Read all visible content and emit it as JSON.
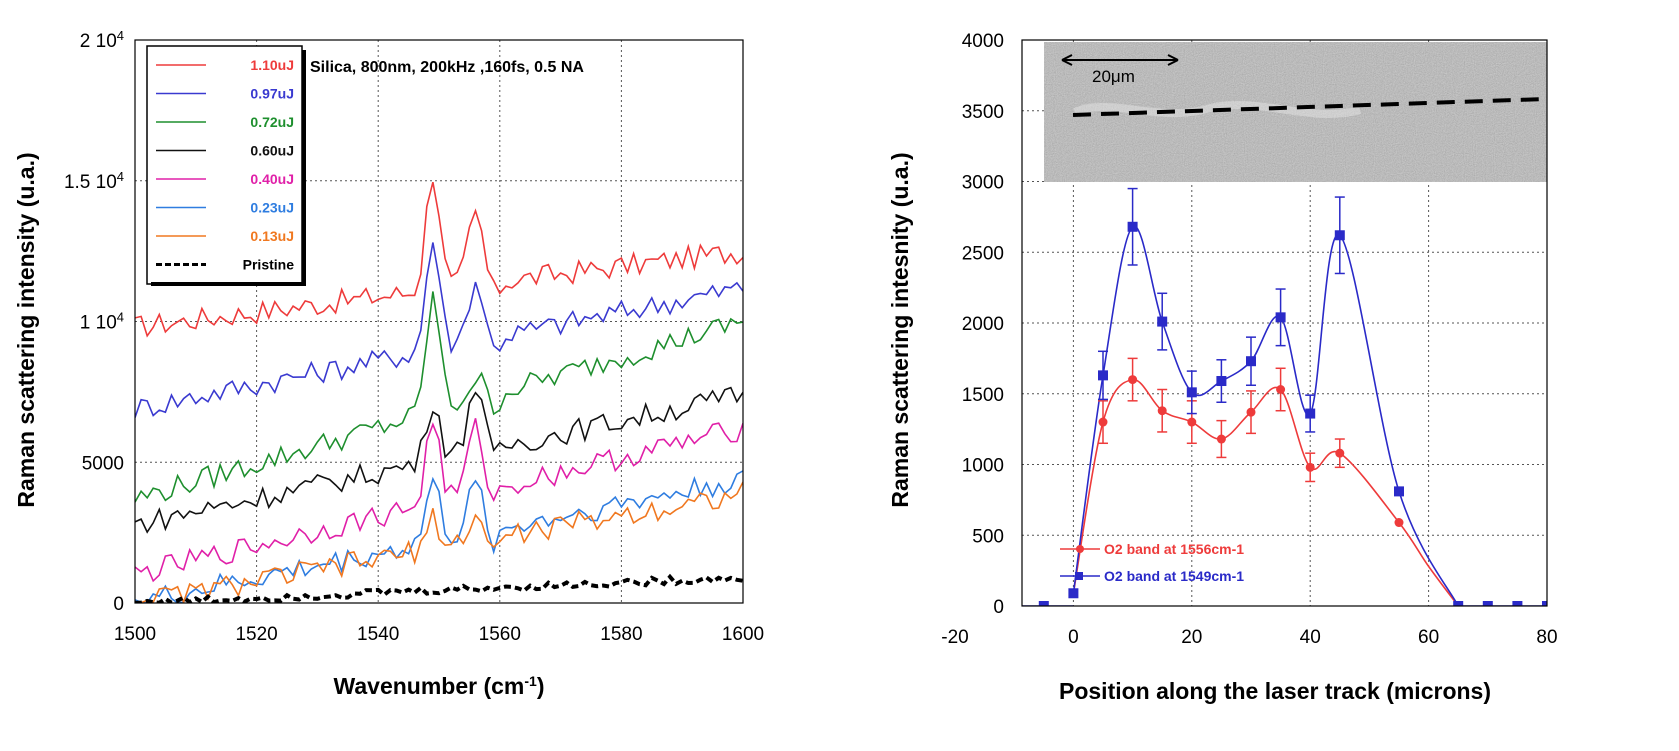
{
  "chart_data": [
    {
      "type": "line",
      "annotation": "Silica, 800nm, 200kHz ,160fs, 0.5 NA",
      "xlabel": "Wavenumber (cm",
      "xlabel_sup": "-1",
      "xlabel_tail": ")",
      "ylabel": "Raman scattering intensity (u.a.)",
      "xlim": [
        1500,
        1600
      ],
      "ylim": [
        0,
        20000
      ],
      "x_ticks": [
        "1500",
        "1520",
        "1540",
        "1560",
        "1580",
        "1600"
      ],
      "y_ticks": [
        "0",
        "5000",
        "1 10",
        "1.5 10",
        "2 10"
      ],
      "y_tick_sup": "4",
      "grid": true,
      "legend": "top-left",
      "colors": {
        "1.10uJ": "#ee3b3b",
        "0.97uJ": "#3a3ad0",
        "0.72uJ": "#1e8f2e",
        "0.60uJ": "#111111",
        "0.40uJ": "#e020a8",
        "0.23uJ": "#2f7de0",
        "0.13uJ": "#f07820",
        "Pristine": "#000000"
      },
      "series": [
        {
          "name": "1.10uJ",
          "baseline_start": 9800,
          "baseline_end": 12500,
          "peaks": [
            {
              "x": 1549,
              "y": 15300
            },
            {
              "x": 1556,
              "y": 13900
            }
          ]
        },
        {
          "name": "0.97uJ",
          "baseline_start": 6900,
          "baseline_end": 11200,
          "peaks": [
            {
              "x": 1549,
              "y": 12900
            },
            {
              "x": 1556,
              "y": 11500
            }
          ]
        },
        {
          "name": "0.72uJ",
          "baseline_start": 3700,
          "baseline_end": 10000,
          "peaks": [
            {
              "x": 1549,
              "y": 10900
            },
            {
              "x": 1556,
              "y": 8000
            }
          ]
        },
        {
          "name": "0.60uJ",
          "baseline_start": 2800,
          "baseline_end": 7400,
          "peaks": [
            {
              "x": 1549,
              "y": 7200
            },
            {
              "x": 1556,
              "y": 7900
            }
          ]
        },
        {
          "name": "0.40uJ",
          "baseline_start": 1000,
          "baseline_end": 6200,
          "peaks": [
            {
              "x": 1549,
              "y": 6500
            },
            {
              "x": 1556,
              "y": 6300
            }
          ]
        },
        {
          "name": "0.23uJ",
          "baseline_start": 0,
          "baseline_end": 4400,
          "peaks": [
            {
              "x": 1549,
              "y": 4300
            },
            {
              "x": 1556,
              "y": 4200
            }
          ]
        },
        {
          "name": "0.13uJ",
          "baseline_start": 0,
          "baseline_end": 3900,
          "peaks": [
            {
              "x": 1549,
              "y": 3000
            },
            {
              "x": 1556,
              "y": 3100
            }
          ]
        },
        {
          "name": "Pristine",
          "baseline_start": 0,
          "baseline_end": 900,
          "peaks": [],
          "style": "dashed"
        }
      ]
    },
    {
      "type": "line",
      "xlabel": "Position along the laser track (microns)",
      "ylabel": "Raman scattering intesnity (u.a.)",
      "xlim": [
        -20,
        80
      ],
      "ylim": [
        0,
        4000
      ],
      "x_ticks": [
        -20,
        0,
        20,
        40,
        60,
        80
      ],
      "y_ticks": [
        0,
        500,
        1000,
        1500,
        2000,
        2500,
        3000,
        3500,
        4000
      ],
      "grid": true,
      "legend": "bottom-left",
      "inset_image_label": "20μm",
      "colors": {
        "O2 band at 1556cm-1": "#ee3b3b",
        "O2 band at 1549cm-1": "#2a2ac8"
      },
      "series": [
        {
          "name": "O2 band at 1556cm-1",
          "marker": "circle",
          "x": [
            5,
            10,
            15,
            20,
            25,
            30,
            35,
            40,
            45,
            55
          ],
          "y": [
            1300,
            1600,
            1380,
            1300,
            1180,
            1370,
            1530,
            980,
            1080,
            590
          ],
          "yerr": [
            150,
            150,
            150,
            150,
            130,
            150,
            150,
            100,
            100,
            0
          ]
        },
        {
          "name": "O2 band at 1549cm-1",
          "marker": "square",
          "x": [
            -10,
            -5,
            0,
            5,
            10,
            15,
            20,
            25,
            30,
            35,
            40,
            45,
            55,
            65,
            70,
            75,
            80
          ],
          "y": [
            0,
            0,
            90,
            1630,
            2680,
            2010,
            1510,
            1590,
            1730,
            2040,
            1360,
            2620,
            810,
            0,
            0,
            0,
            0
          ],
          "yerr": [
            0,
            0,
            0,
            170,
            270,
            200,
            150,
            150,
            170,
            200,
            130,
            270,
            0,
            0,
            0,
            0,
            0
          ]
        }
      ]
    }
  ]
}
